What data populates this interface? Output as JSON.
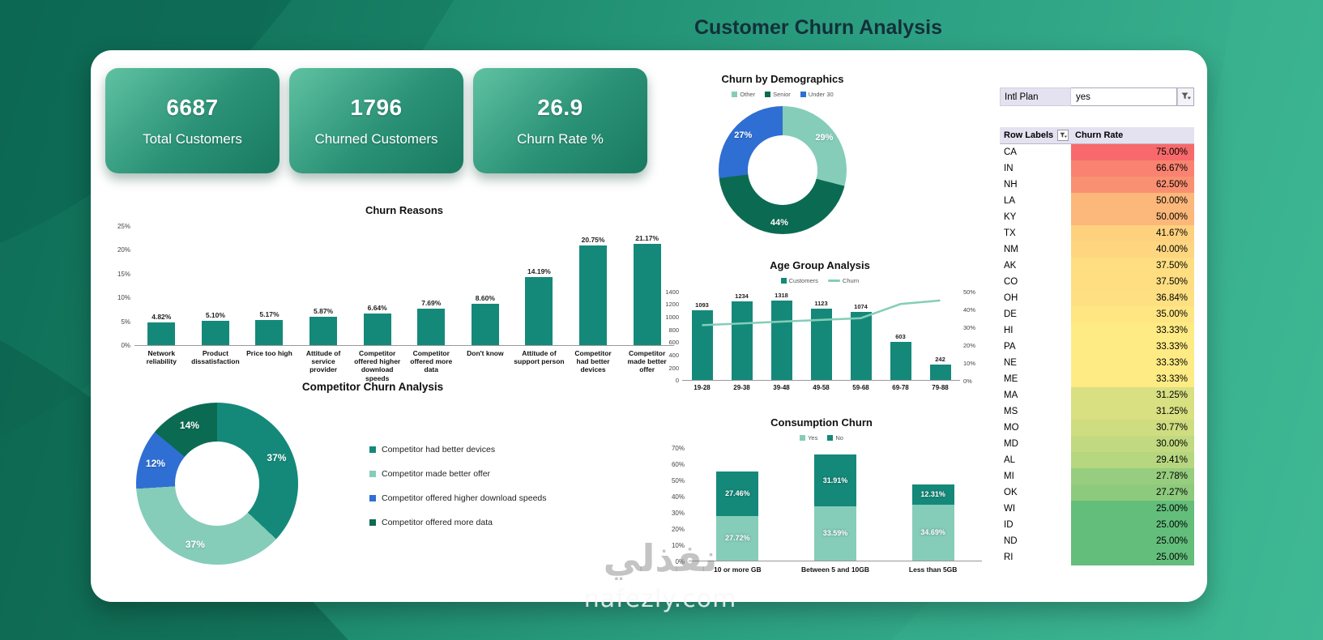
{
  "page_title": "Customer Churn Analysis",
  "kpis": [
    {
      "value": "6687",
      "label": "Total Customers"
    },
    {
      "value": "1796",
      "label": "Churned Customers"
    },
    {
      "value": "26.9",
      "label": "Churn Rate %"
    }
  ],
  "filter": {
    "label": "Intl Plan",
    "value": "yes"
  },
  "pivot": {
    "col1": "Row Labels",
    "col2": "Churn Rate",
    "heat_scale": {
      "min": 25,
      "mid": 33.33,
      "max": 75
    },
    "rows": [
      {
        "state": "CA",
        "value": 75.0,
        "display": "75.00%"
      },
      {
        "state": "IN",
        "value": 66.67,
        "display": "66.67%"
      },
      {
        "state": "NH",
        "value": 62.5,
        "display": "62.50%"
      },
      {
        "state": "LA",
        "value": 50.0,
        "display": "50.00%"
      },
      {
        "state": "KY",
        "value": 50.0,
        "display": "50.00%"
      },
      {
        "state": "TX",
        "value": 41.67,
        "display": "41.67%"
      },
      {
        "state": "NM",
        "value": 40.0,
        "display": "40.00%"
      },
      {
        "state": "AK",
        "value": 37.5,
        "display": "37.50%"
      },
      {
        "state": "CO",
        "value": 37.5,
        "display": "37.50%"
      },
      {
        "state": "OH",
        "value": 36.84,
        "display": "36.84%"
      },
      {
        "state": "DE",
        "value": 35.0,
        "display": "35.00%"
      },
      {
        "state": "HI",
        "value": 33.33,
        "display": "33.33%"
      },
      {
        "state": "PA",
        "value": 33.33,
        "display": "33.33%"
      },
      {
        "state": "NE",
        "value": 33.33,
        "display": "33.33%"
      },
      {
        "state": "ME",
        "value": 33.33,
        "display": "33.33%"
      },
      {
        "state": "MA",
        "value": 31.25,
        "display": "31.25%"
      },
      {
        "state": "MS",
        "value": 31.25,
        "display": "31.25%"
      },
      {
        "state": "MO",
        "value": 30.77,
        "display": "30.77%"
      },
      {
        "state": "MD",
        "value": 30.0,
        "display": "30.00%"
      },
      {
        "state": "AL",
        "value": 29.41,
        "display": "29.41%"
      },
      {
        "state": "MI",
        "value": 27.78,
        "display": "27.78%"
      },
      {
        "state": "OK",
        "value": 27.27,
        "display": "27.27%"
      },
      {
        "state": "WI",
        "value": 25.0,
        "display": "25.00%"
      },
      {
        "state": "ID",
        "value": 25.0,
        "display": "25.00%"
      },
      {
        "state": "ND",
        "value": 25.0,
        "display": "25.00%"
      },
      {
        "state": "RI",
        "value": 25.0,
        "display": "25.00%"
      }
    ]
  },
  "watermark": {
    "arabic": "نفذلي",
    "latin": "nafezly.com"
  },
  "colors": {
    "teal": "#14897A",
    "darkTeal": "#0B6B52",
    "lightTeal": "#85CDB9",
    "blue": "#2F6FD3",
    "heatMin": "#63BE7B",
    "heatMid": "#FFEB84",
    "heatMax": "#F8696B"
  },
  "chart_data": [
    {
      "id": "churn-reasons",
      "type": "bar",
      "title": "Churn Reasons",
      "categories": [
        "Network reliability",
        "Product dissatisfaction",
        "Price too high",
        "Attitude of service provider",
        "Competitor offered higher download speeds",
        "Competitor offered more data",
        "Don't know",
        "Attitude of support person",
        "Competitor had better devices",
        "Competitor made better offer"
      ],
      "values": [
        4.82,
        5.1,
        5.17,
        5.87,
        6.64,
        7.69,
        8.6,
        14.19,
        20.75,
        21.17
      ],
      "data_labels": [
        "4.82%",
        "5.10%",
        "5.17%",
        "5.87%",
        "6.64%",
        "7.69%",
        "8.60%",
        "14.19%",
        "20.75%",
        "21.17%"
      ],
      "ylim": [
        0,
        25
      ],
      "yticks": [
        "0%",
        "5%",
        "10%",
        "15%",
        "20%",
        "25%"
      ],
      "bar_color_key": "teal"
    },
    {
      "id": "churn-demographics",
      "type": "pie",
      "title": "Churn by Demographics",
      "slices": [
        {
          "name": "Other",
          "value": 29,
          "label": "29%",
          "color_key": "lightTeal"
        },
        {
          "name": "Senior",
          "value": 44,
          "label": "44%",
          "color_key": "darkTeal"
        },
        {
          "name": "Under 30",
          "value": 27,
          "label": "27%",
          "color_key": "blue"
        }
      ],
      "legend_position": "top"
    },
    {
      "id": "age-group-analysis",
      "type": "bar+line",
      "title": "Age Group Analysis",
      "categories": [
        "19-28",
        "29-38",
        "39-48",
        "49-58",
        "59-68",
        "69-78",
        "79-88"
      ],
      "series": [
        {
          "name": "Customers",
          "type": "bar",
          "color_key": "teal",
          "values": [
            1093,
            1234,
            1318,
            1123,
            1074,
            603,
            242
          ],
          "labels": [
            "1093",
            "1234",
            "1318",
            "1123",
            "1074",
            "603",
            "242"
          ]
        },
        {
          "name": "Churn",
          "type": "line",
          "color_key": "lightTeal",
          "values": [
            31,
            32,
            33,
            34,
            35,
            43,
            45
          ]
        }
      ],
      "ylim_left": [
        0,
        1400
      ],
      "yticks_left": [
        "0",
        "200",
        "400",
        "600",
        "800",
        "1000",
        "1200",
        "1400"
      ],
      "ylim_right": [
        0,
        50
      ],
      "yticks_right": [
        "0%",
        "10%",
        "20%",
        "30%",
        "40%",
        "50%"
      ]
    },
    {
      "id": "competitor-churn",
      "type": "pie",
      "title": "Competitor Churn Analysis",
      "slices": [
        {
          "name": "Competitor had better devices",
          "value": 37,
          "label": "37%",
          "color_key": "teal"
        },
        {
          "name": "Competitor made better offer",
          "value": 37,
          "label": "37%",
          "color_key": "lightTeal"
        },
        {
          "name": "Competitor offered higher download speeds",
          "value": 12,
          "label": "12%",
          "color_key": "blue"
        },
        {
          "name": "Competitor offered more data",
          "value": 14,
          "label": "14%",
          "color_key": "darkTeal"
        }
      ],
      "legend_position": "right"
    },
    {
      "id": "consumption-churn",
      "type": "stacked-bar",
      "title": "Consumption Churn",
      "categories": [
        "10 or more GB",
        "Between 5 and 10GB",
        "Less than 5GB"
      ],
      "series": [
        {
          "name": "Yes",
          "color_key": "lightTeal",
          "values": [
            27.72,
            33.59,
            34.69
          ],
          "labels": [
            "27.72%",
            "33.59%",
            "34.69%"
          ]
        },
        {
          "name": "No",
          "color_key": "teal",
          "values": [
            27.46,
            31.91,
            12.31
          ],
          "labels": [
            "27.46%",
            "31.91%",
            "12.31%"
          ]
        }
      ],
      "ylim": [
        0,
        70
      ],
      "yticks": [
        "0%",
        "10%",
        "20%",
        "30%",
        "40%",
        "50%",
        "60%",
        "70%"
      ]
    }
  ]
}
